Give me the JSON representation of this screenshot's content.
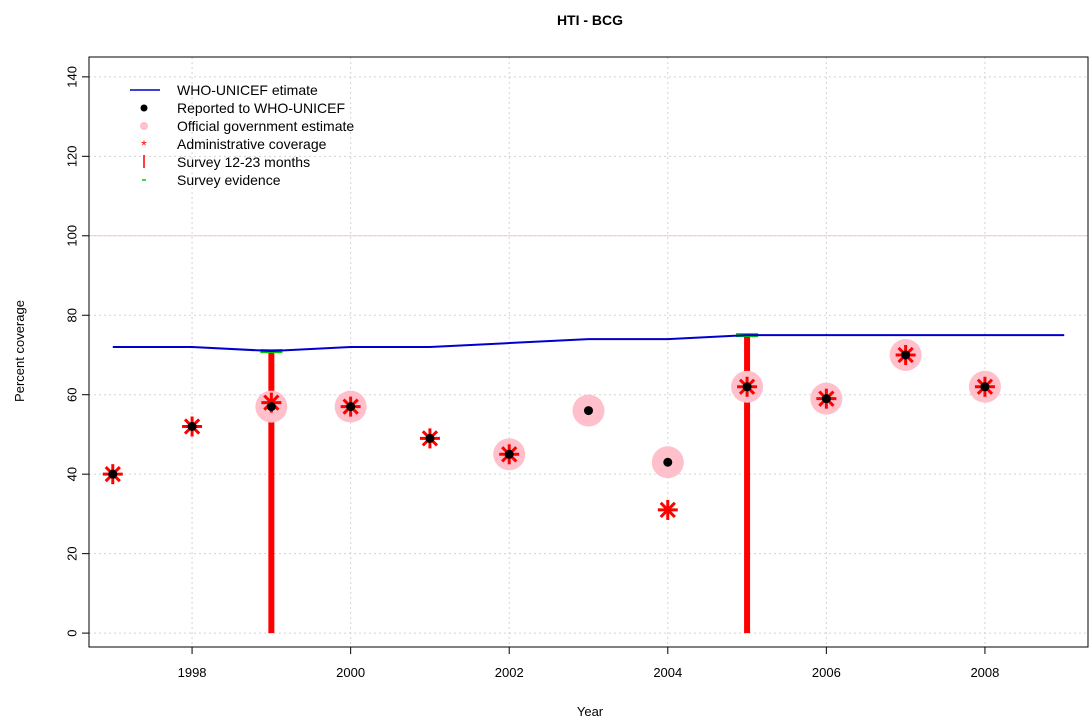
{
  "chart_data": {
    "type": "line",
    "title": "HTI  -  BCG",
    "xlabel": "Year",
    "ylabel": "Percent coverage",
    "xlim": [
      1996.7,
      2009.3
    ],
    "ylim": [
      -3.5,
      145
    ],
    "x_ticks": [
      1998,
      2000,
      2002,
      2004,
      2006,
      2008
    ],
    "y_ticks": [
      0,
      20,
      40,
      60,
      80,
      100,
      120,
      140
    ],
    "grid": true,
    "reference_line_y": 100,
    "legend_position": "top-left",
    "series": [
      {
        "name": "WHO-UNICEF etimate",
        "kind": "step-line",
        "color": "#0000cc",
        "x": [
          1997,
          1998,
          1999,
          2000,
          2001,
          2002,
          2003,
          2004,
          2005,
          2006,
          2007,
          2008,
          2009
        ],
        "y": [
          72,
          72,
          71,
          72,
          72,
          73,
          74,
          74,
          75,
          75,
          75,
          75,
          75
        ]
      },
      {
        "name": "Reported to WHO-UNICEF",
        "kind": "points",
        "color": "#000000",
        "x": [
          1997,
          1998,
          1999,
          2000,
          2001,
          2002,
          2003,
          2004,
          2005,
          2006,
          2007,
          2008
        ],
        "y": [
          40,
          52,
          57,
          57,
          49,
          45,
          56,
          43,
          62,
          59,
          70,
          62
        ]
      },
      {
        "name": "Official government estimate",
        "kind": "points",
        "color": "#ffc0cb",
        "x": [
          1999,
          2000,
          2002,
          2003,
          2004,
          2005,
          2006,
          2007,
          2008
        ],
        "y": [
          57,
          57,
          45,
          56,
          43,
          62,
          59,
          70,
          62
        ]
      },
      {
        "name": "Administrative coverage",
        "kind": "stars",
        "color": "#ff0000",
        "x": [
          1997,
          1998,
          1999,
          2000,
          2001,
          2002,
          2004,
          2005,
          2006,
          2007,
          2008
        ],
        "y": [
          40,
          52,
          58,
          57,
          49,
          45,
          31,
          62,
          59,
          70,
          62
        ]
      },
      {
        "name": "Survey 12-23 months",
        "kind": "vertical-bars",
        "color": "#ff0000",
        "x": [
          1999,
          2005
        ],
        "y": [
          71,
          75
        ]
      },
      {
        "name": "Survey evidence",
        "kind": "horizontal-ticks",
        "color": "#00cc00",
        "x": [
          1999,
          2005
        ],
        "y": [
          71,
          75
        ]
      }
    ]
  }
}
